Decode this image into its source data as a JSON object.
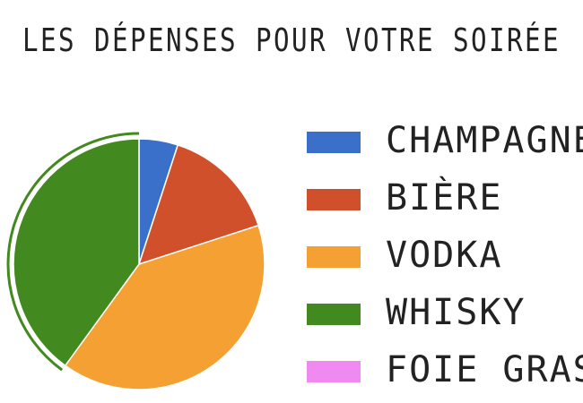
{
  "chart_data": {
    "type": "pie",
    "title": "LES DÉPENSES POUR VOTRE SOIRÉE",
    "categories": [
      "CHAMPAGNE",
      "BIÈRE",
      "VODKA",
      "WHISKY",
      "FOIE GRAS"
    ],
    "values": [
      5,
      15,
      40,
      40,
      0
    ],
    "colors": [
      "#3a70c9",
      "#d0502b",
      "#f4a032",
      "#428a1f",
      "#f08af0"
    ],
    "highlight": 3
  }
}
